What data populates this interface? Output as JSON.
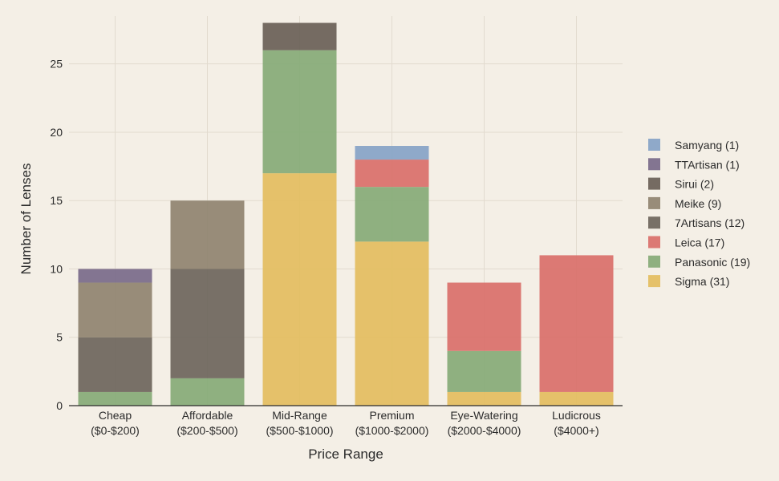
{
  "chart_data": {
    "type": "bar",
    "stacked": true,
    "title": "",
    "xlabel": "Price Range",
    "ylabel": "Number of Lenses",
    "ylim": [
      0,
      28.5
    ],
    "yticks": [
      0,
      5,
      10,
      15,
      20,
      25
    ],
    "grid": true,
    "legend_position": "right",
    "categories": [
      [
        "Cheap",
        "($0-$200)"
      ],
      [
        "Affordable",
        "($200-$500)"
      ],
      [
        "Mid-Range",
        "($500-$1000)"
      ],
      [
        "Premium",
        "($1000-$2000)"
      ],
      [
        "Eye-Watering",
        "($2000-$4000)"
      ],
      [
        "Ludicrous",
        "($4000+)"
      ]
    ],
    "series": [
      {
        "name": "Sigma (31)",
        "color": "#e3bd60",
        "values": [
          0,
          0,
          17,
          12,
          1,
          1
        ]
      },
      {
        "name": "Panasonic (19)",
        "color": "#86ab77",
        "values": [
          1,
          2,
          9,
          4,
          3,
          0
        ]
      },
      {
        "name": "Leica (17)",
        "color": "#d9706a",
        "values": [
          0,
          0,
          0,
          2,
          5,
          10
        ]
      },
      {
        "name": "7Artisans (12)",
        "color": "#6e665c",
        "values": [
          4,
          8,
          0,
          0,
          0,
          0
        ]
      },
      {
        "name": "Meike (9)",
        "color": "#908470",
        "values": [
          4,
          5,
          0,
          0,
          0,
          0
        ]
      },
      {
        "name": "Sirui (2)",
        "color": "#6a6157",
        "values": [
          0,
          0,
          2,
          0,
          0,
          0
        ]
      },
      {
        "name": "TTArtisan (1)",
        "color": "#7a6c8a",
        "values": [
          1,
          0,
          0,
          0,
          0,
          0
        ]
      },
      {
        "name": "Samyang (1)",
        "color": "#87a4c6",
        "values": [
          0,
          0,
          0,
          1,
          0,
          0
        ]
      }
    ]
  }
}
